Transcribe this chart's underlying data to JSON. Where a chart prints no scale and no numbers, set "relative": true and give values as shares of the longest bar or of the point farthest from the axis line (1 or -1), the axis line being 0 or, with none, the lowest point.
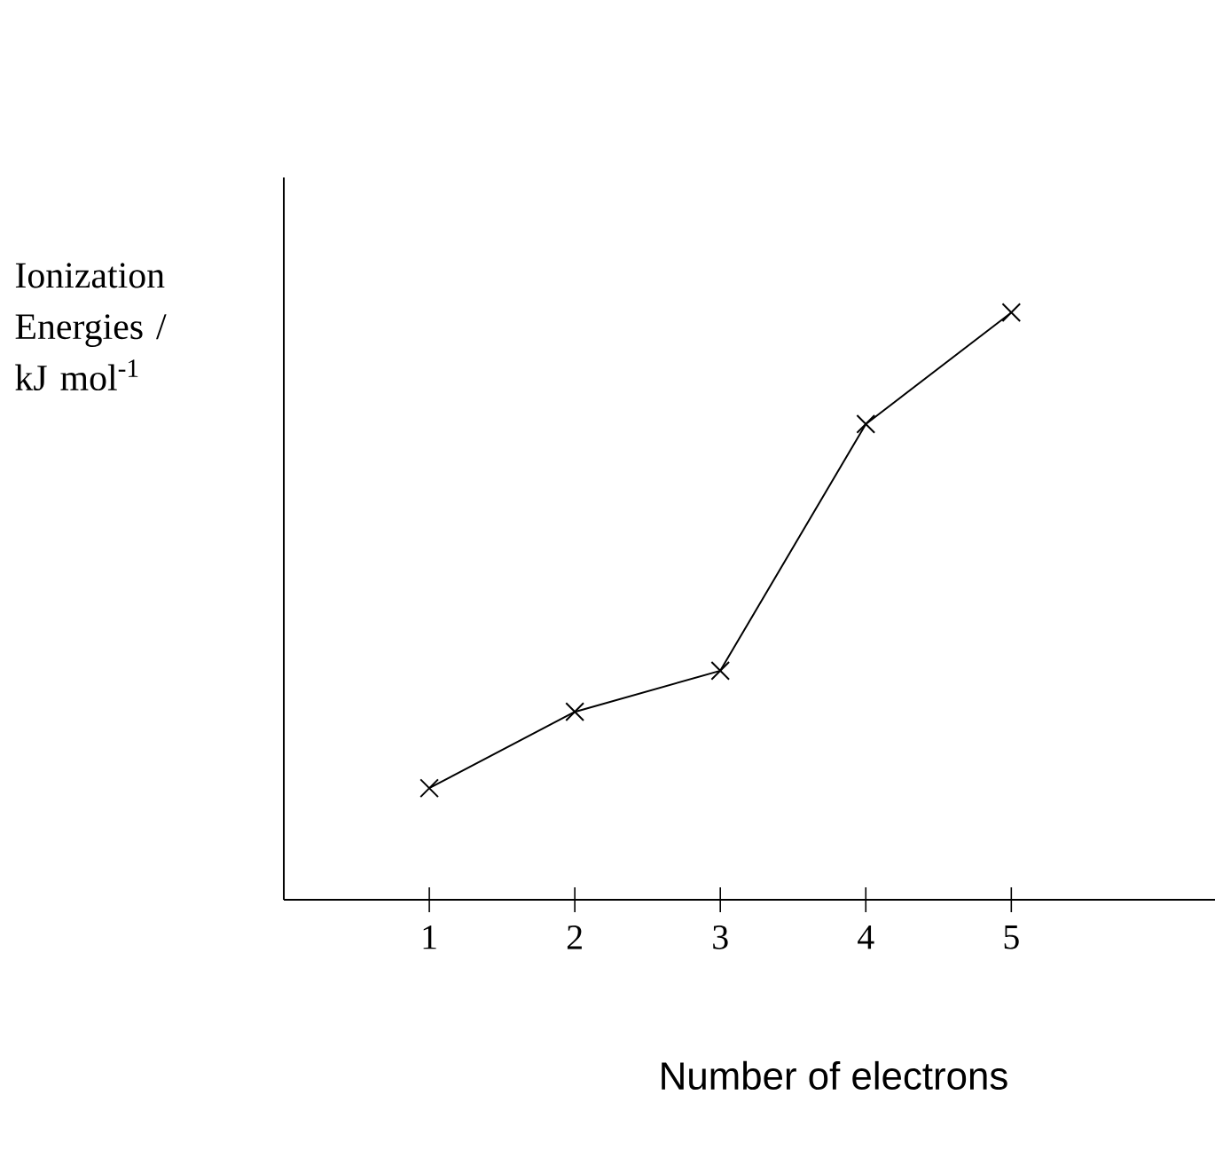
{
  "chart_data": {
    "type": "line",
    "xlabel": "Number of electrons",
    "ylabel": "Ionization Energies / kJ mol$^{-1}$",
    "x": [
      1,
      2,
      3,
      4,
      5
    ],
    "values": [
      0.19,
      0.32,
      0.39,
      0.81,
      1.0
    ],
    "relative": true,
    "color": "#000000",
    "xlim": [
      0,
      6.4
    ],
    "xticks": [
      1,
      2,
      3,
      4,
      5
    ],
    "marker": "cross",
    "line_style": "solid",
    "grid": false
  }
}
